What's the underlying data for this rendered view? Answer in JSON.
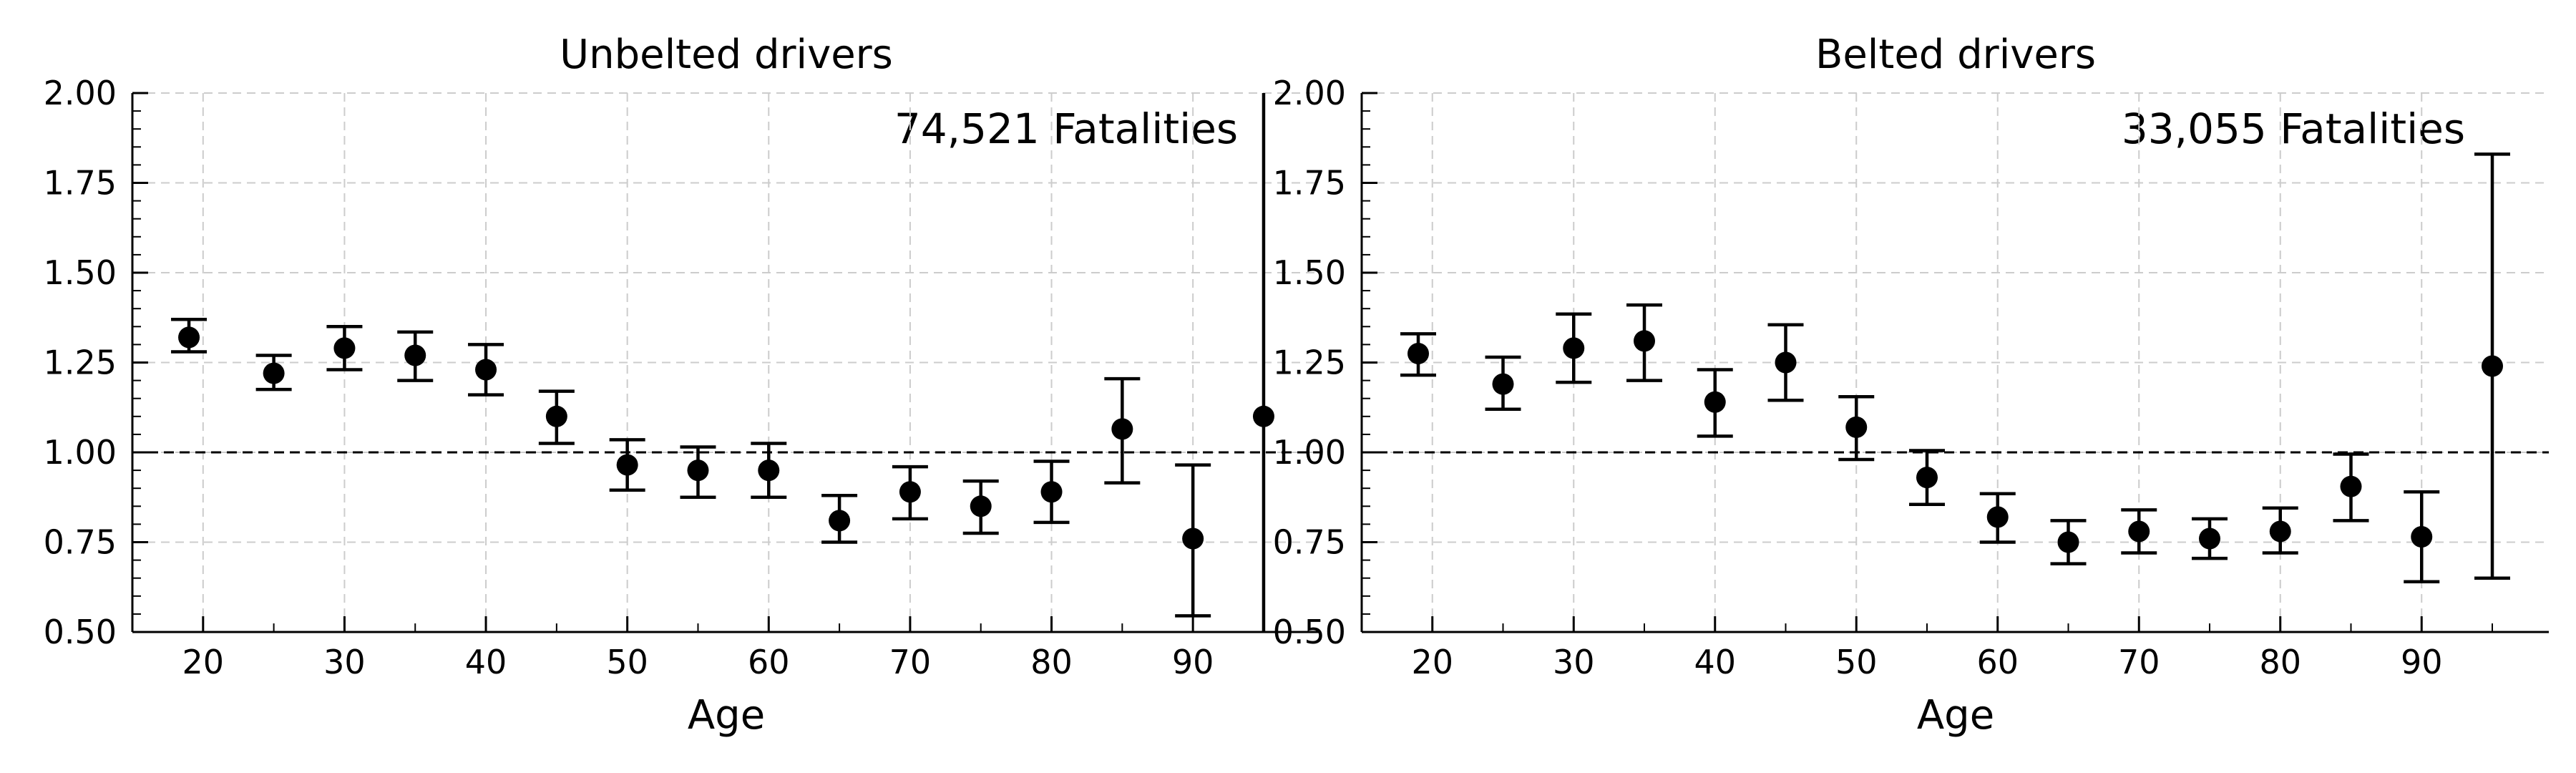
{
  "chart_data": [
    {
      "type": "scatter",
      "title": "Unbelted drivers",
      "annotation": "74,521 Fatalities",
      "xlabel": "Age",
      "ylabel": "",
      "xlim": [
        15,
        99
      ],
      "ylim": [
        0.5,
        2.0
      ],
      "xticks": [
        "20",
        "30",
        "40",
        "50",
        "60",
        "70",
        "80",
        "90"
      ],
      "yticks": [
        "0.50",
        "0.75",
        "1.00",
        "1.25",
        "1.50",
        "1.75",
        "2.00"
      ],
      "reference_line": 1.0,
      "grid": true,
      "series": [
        {
          "x": [
            19,
            25,
            30,
            35,
            40,
            45,
            50,
            55,
            60,
            65,
            70,
            75,
            80,
            85,
            90,
            95
          ],
          "y": [
            1.32,
            1.22,
            1.29,
            1.27,
            1.23,
            1.1,
            0.965,
            0.95,
            0.95,
            0.81,
            0.89,
            0.85,
            0.89,
            1.065,
            0.76,
            1.1
          ],
          "err_low": [
            1.28,
            1.175,
            1.23,
            1.2,
            1.16,
            1.025,
            0.895,
            0.875,
            0.875,
            0.75,
            0.815,
            0.775,
            0.805,
            0.915,
            0.545,
            0.5
          ],
          "err_high": [
            1.37,
            1.27,
            1.35,
            1.335,
            1.3,
            1.17,
            1.035,
            1.015,
            1.025,
            0.88,
            0.96,
            0.92,
            0.975,
            1.205,
            0.965,
            2.0
          ]
        }
      ]
    },
    {
      "type": "scatter",
      "title": "Belted drivers",
      "annotation": "33,055 Fatalities",
      "xlabel": "Age",
      "ylabel": "",
      "xlim": [
        15,
        99
      ],
      "ylim": [
        0.5,
        2.0
      ],
      "xticks": [
        "20",
        "30",
        "40",
        "50",
        "60",
        "70",
        "80",
        "90"
      ],
      "yticks": [
        "0.50",
        "0.75",
        "1.00",
        "1.25",
        "1.50",
        "1.75",
        "2.00"
      ],
      "reference_line": 1.0,
      "grid": true,
      "series": [
        {
          "x": [
            19,
            25,
            30,
            35,
            40,
            45,
            50,
            55,
            60,
            65,
            70,
            75,
            80,
            85,
            90,
            95
          ],
          "y": [
            1.275,
            1.19,
            1.29,
            1.31,
            1.14,
            1.25,
            1.07,
            0.93,
            0.82,
            0.75,
            0.78,
            0.76,
            0.78,
            0.905,
            0.765,
            1.24
          ],
          "err_low": [
            1.215,
            1.12,
            1.195,
            1.2,
            1.045,
            1.145,
            0.98,
            0.855,
            0.75,
            0.69,
            0.72,
            0.705,
            0.72,
            0.81,
            0.64,
            0.65
          ],
          "err_high": [
            1.33,
            1.265,
            1.385,
            1.41,
            1.23,
            1.355,
            1.155,
            1.005,
            0.885,
            0.81,
            0.84,
            0.815,
            0.845,
            0.995,
            0.89,
            1.83
          ]
        }
      ]
    }
  ]
}
